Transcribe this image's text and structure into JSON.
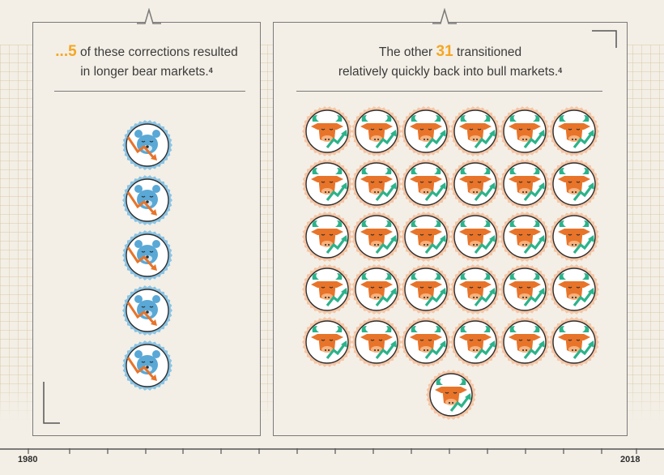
{
  "left_panel": {
    "heading_prefix": "...",
    "heading_number": "5",
    "heading_rest": " of these corrections resulted",
    "heading_line2": "in longer bear markets.",
    "footnote": "4",
    "icon_count": 5,
    "icon_name": "bear-market-icon"
  },
  "right_panel": {
    "heading_prefix": "The other ",
    "heading_number": "31",
    "heading_rest": " transitioned",
    "heading_line2": "relatively quickly back into bull markets.",
    "footnote": "4",
    "icon_count": 31,
    "icon_name": "bull-market-icon"
  },
  "timeline": {
    "start_label": "1980",
    "end_label": "2018"
  },
  "colors": {
    "accent": "#f5a623",
    "bear": "#5aa8d6",
    "bull": "#e8742a",
    "arrow_down": "#e8742a",
    "arrow_up": "#2bb38a",
    "text": "#3b3b3b",
    "background": "#f3efe6"
  }
}
